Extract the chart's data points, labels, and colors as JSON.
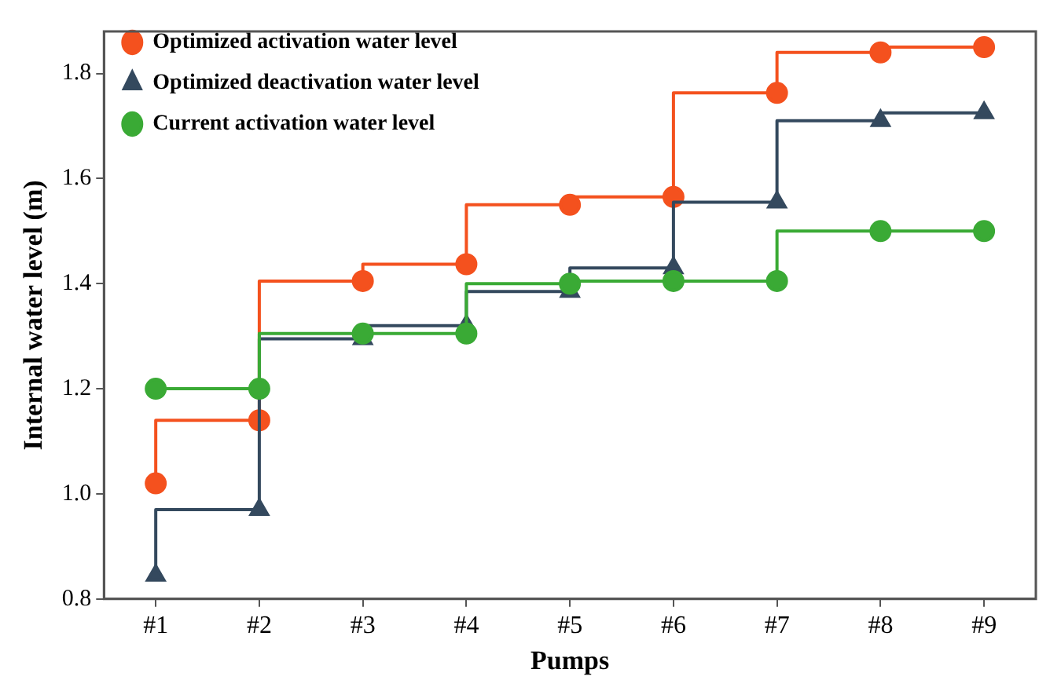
{
  "chart_data": {
    "type": "step",
    "xlabel": "Pumps",
    "ylabel": "Internal water level (m)",
    "categories": [
      "#1",
      "#2",
      "#3",
      "#4",
      "#5",
      "#6",
      "#7",
      "#8",
      "#9"
    ],
    "series": [
      {
        "name": "Optimized activation water level",
        "color": "#f4511e",
        "marker": "circle",
        "values": [
          1.02,
          1.14,
          1.405,
          1.437,
          1.55,
          1.565,
          1.763,
          1.84,
          1.85
        ]
      },
      {
        "name": "Optimized deactivation water level",
        "color": "#34495e",
        "marker": "triangle",
        "values": [
          0.845,
          0.97,
          1.295,
          1.32,
          1.385,
          1.43,
          1.555,
          1.71,
          1.725
        ]
      },
      {
        "name": "Current activation water level",
        "color": "#3aaa35",
        "marker": "circle",
        "values": [
          1.2,
          1.2,
          1.305,
          1.305,
          1.4,
          1.405,
          1.405,
          1.5,
          1.5
        ]
      }
    ],
    "ylim": [
      0.8,
      1.88
    ],
    "yticks": [
      0.8,
      {
        "value": 1,
        "label": "1.0"
      },
      1.2,
      1.4,
      1.6,
      1.8
    ],
    "grid": false,
    "legend": "top left",
    "line_style": "solid"
  }
}
